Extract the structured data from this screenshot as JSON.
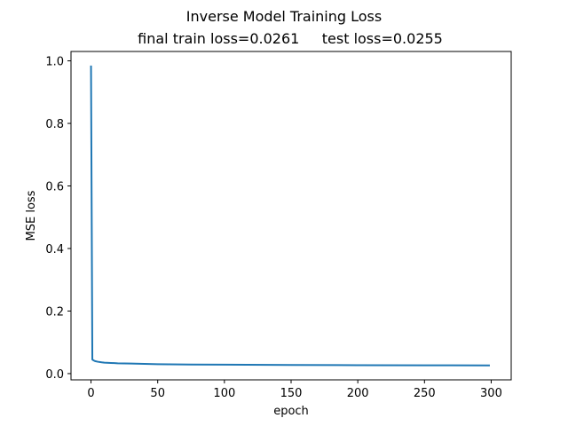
{
  "chart_data": {
    "type": "line",
    "title": "Inverse Model Training Loss",
    "subtitle": "final train loss=0.0261     test loss=0.0255",
    "xlabel": "epoch",
    "ylabel": "MSE loss",
    "xlim": [
      -15,
      315
    ],
    "ylim": [
      -0.02,
      1.03
    ],
    "xticks": [
      0,
      50,
      100,
      150,
      200,
      250,
      300
    ],
    "yticks": [
      0.0,
      0.2,
      0.4,
      0.6,
      0.8,
      1.0
    ],
    "xtick_labels": [
      "0",
      "50",
      "100",
      "150",
      "200",
      "250",
      "300"
    ],
    "ytick_labels": [
      "0.0",
      "0.2",
      "0.4",
      "0.6",
      "0.8",
      "1.0"
    ],
    "grid": false,
    "legend": false,
    "series": [
      {
        "color": "#1f77b4",
        "x": [
          0,
          1,
          2,
          3,
          5,
          8,
          10,
          15,
          20,
          30,
          50,
          75,
          100,
          150,
          200,
          250,
          299
        ],
        "y": [
          0.985,
          0.045,
          0.042,
          0.04,
          0.038,
          0.036,
          0.035,
          0.034,
          0.033,
          0.032,
          0.03,
          0.029,
          0.0285,
          0.0275,
          0.027,
          0.0265,
          0.0261
        ]
      }
    ]
  }
}
